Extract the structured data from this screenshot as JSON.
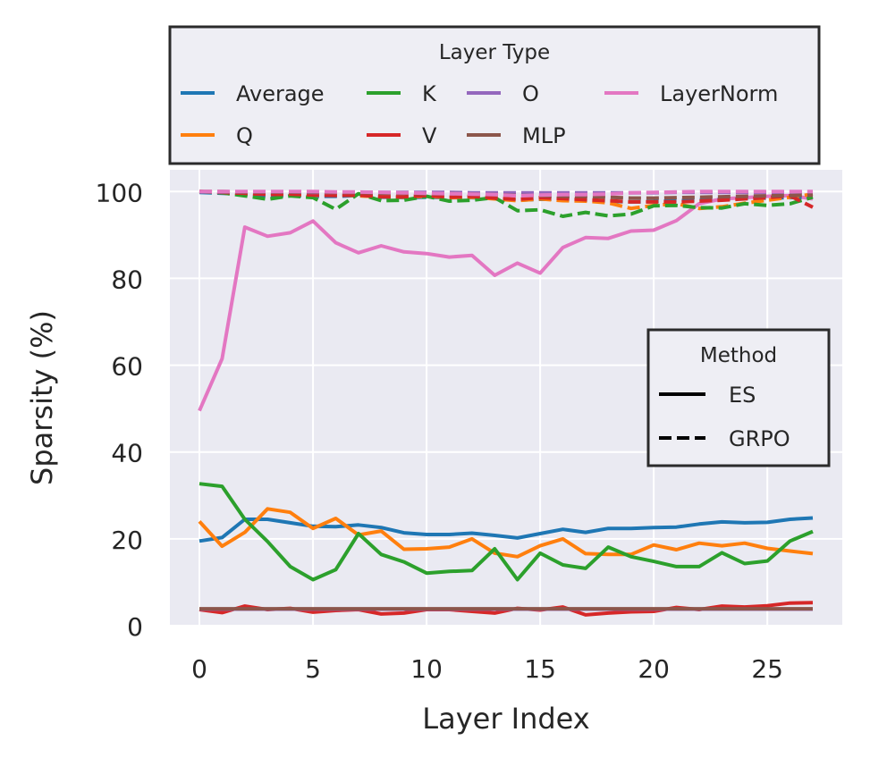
{
  "chart_data": {
    "type": "line",
    "title": "",
    "xlabel": "Layer Index",
    "ylabel": "Sparsity (%)",
    "xlim": [
      -1.3,
      28.3
    ],
    "ylim": [
      0,
      105
    ],
    "xticks": [
      0,
      5,
      10,
      15,
      20,
      25
    ],
    "yticks": [
      0,
      20,
      40,
      60,
      80,
      100
    ],
    "grid": true,
    "x": [
      0,
      1,
      2,
      3,
      4,
      5,
      6,
      7,
      8,
      9,
      10,
      11,
      12,
      13,
      14,
      15,
      16,
      17,
      18,
      19,
      20,
      21,
      22,
      23,
      24,
      25,
      26,
      27
    ],
    "layer_legend": {
      "title": "Layer Type",
      "placement": "top-outside",
      "entries": [
        {
          "name": "Average",
          "color": "#1f77b4"
        },
        {
          "name": "Q",
          "color": "#ff7f0e"
        },
        {
          "name": "K",
          "color": "#2ca02c"
        },
        {
          "name": "V",
          "color": "#d62728"
        },
        {
          "name": "O",
          "color": "#9467bd"
        },
        {
          "name": "MLP",
          "color": "#8c564b"
        },
        {
          "name": "LayerNorm",
          "color": "#e377c2"
        }
      ]
    },
    "method_legend": {
      "title": "Method",
      "placement": "center-right",
      "entries": [
        {
          "name": "ES",
          "style": "solid"
        },
        {
          "name": "GRPO",
          "style": "dashed"
        }
      ]
    },
    "series": [
      {
        "name": "Average",
        "method": "ES",
        "color": "#1f77b4",
        "values": [
          19.5,
          20.3,
          24.5,
          24.5,
          23.7,
          22.9,
          22.8,
          23.2,
          22.6,
          21.4,
          21.0,
          21.0,
          21.3,
          20.8,
          20.2,
          21.2,
          22.2,
          21.5,
          22.4,
          22.4,
          22.6,
          22.7,
          23.4,
          23.9,
          23.7,
          23.8,
          24.5,
          24.8
        ]
      },
      {
        "name": "Q",
        "method": "ES",
        "color": "#ff7f0e",
        "values": [
          24.0,
          18.3,
          21.5,
          26.9,
          26.1,
          22.4,
          24.7,
          20.9,
          21.8,
          17.6,
          17.7,
          18.1,
          20.0,
          16.7,
          15.9,
          18.4,
          20.0,
          16.6,
          16.4,
          16.4,
          18.6,
          17.5,
          19.0,
          18.4,
          19.0,
          17.8,
          17.2,
          16.6
        ]
      },
      {
        "name": "K",
        "method": "ES",
        "color": "#2ca02c",
        "values": [
          32.7,
          32.1,
          24.5,
          19.4,
          13.6,
          10.6,
          12.9,
          21.2,
          16.4,
          14.7,
          12.1,
          12.5,
          12.7,
          17.7,
          10.6,
          16.7,
          14.0,
          13.2,
          18.1,
          15.9,
          14.8,
          13.6,
          13.6,
          16.8,
          14.3,
          14.9,
          19.5,
          21.7
        ]
      },
      {
        "name": "V",
        "method": "ES",
        "color": "#d62728",
        "values": [
          3.7,
          3.0,
          4.5,
          3.7,
          4.0,
          3.1,
          3.5,
          3.7,
          2.7,
          2.9,
          3.7,
          3.7,
          3.3,
          2.9,
          4.0,
          3.6,
          4.3,
          2.5,
          2.9,
          3.2,
          3.3,
          4.2,
          3.7,
          4.5,
          4.3,
          4.6,
          5.2,
          5.3
        ]
      },
      {
        "name": "O",
        "method": "ES",
        "color": "#9467bd",
        "values": [
          3.8,
          3.8,
          3.8,
          3.8,
          3.8,
          3.8,
          3.8,
          3.8,
          3.8,
          3.8,
          3.8,
          3.8,
          3.8,
          3.8,
          3.8,
          3.8,
          3.8,
          3.8,
          3.8,
          3.8,
          3.8,
          3.8,
          3.8,
          3.8,
          3.8,
          3.8,
          3.8,
          3.8
        ]
      },
      {
        "name": "MLP",
        "method": "ES",
        "color": "#8c564b",
        "values": [
          3.9,
          3.9,
          3.9,
          3.9,
          3.9,
          3.9,
          3.9,
          3.9,
          3.9,
          3.9,
          3.9,
          3.9,
          3.9,
          3.9,
          3.9,
          3.9,
          3.9,
          3.9,
          3.9,
          3.9,
          3.9,
          3.9,
          3.9,
          3.9,
          3.9,
          3.9,
          3.9,
          3.9
        ]
      },
      {
        "name": "LayerNorm",
        "method": "ES",
        "color": "#e377c2",
        "values": [
          49.5,
          61.5,
          91.8,
          89.7,
          90.5,
          93.2,
          88.2,
          85.9,
          87.5,
          86.1,
          85.7,
          84.9,
          85.3,
          80.7,
          83.5,
          81.2,
          87.1,
          89.4,
          89.2,
          90.9,
          91.1,
          93.3,
          97.2,
          98.3,
          98.6,
          98.9,
          99.1,
          98.3
        ]
      },
      {
        "name": "Average",
        "method": "GRPO",
        "color": "#1f77b4",
        "values": [
          99.8,
          99.6,
          99.4,
          99.0,
          99.1,
          98.9,
          98.9,
          99.1,
          98.7,
          98.6,
          98.7,
          98.6,
          98.6,
          98.4,
          98.0,
          98.2,
          98.2,
          98.0,
          97.8,
          97.6,
          97.7,
          97.9,
          98.1,
          98.2,
          98.4,
          98.5,
          98.6,
          98.7
        ]
      },
      {
        "name": "Q",
        "method": "GRPO",
        "color": "#ff7f0e",
        "values": [
          100.0,
          99.8,
          99.6,
          99.4,
          99.3,
          99.1,
          99.3,
          99.0,
          98.8,
          98.7,
          98.9,
          98.6,
          98.7,
          98.3,
          97.9,
          98.3,
          97.9,
          97.8,
          97.4,
          96.1,
          96.8,
          97.2,
          96.1,
          96.5,
          97.3,
          98.0,
          98.7,
          99.4
        ]
      },
      {
        "name": "K",
        "method": "GRPO",
        "color": "#2ca02c",
        "values": [
          100.0,
          99.7,
          99.0,
          98.2,
          99.0,
          98.6,
          95.9,
          99.5,
          97.9,
          98.0,
          98.9,
          97.8,
          98.0,
          98.6,
          95.6,
          95.8,
          94.3,
          95.2,
          94.4,
          94.8,
          96.7,
          96.8,
          96.3,
          96.2,
          97.2,
          96.8,
          97.2,
          98.7
        ]
      },
      {
        "name": "V",
        "method": "GRPO",
        "color": "#d62728",
        "values": [
          100.0,
          99.8,
          99.6,
          99.3,
          99.4,
          99.2,
          99.1,
          99.2,
          98.8,
          98.8,
          99.1,
          98.7,
          98.9,
          98.5,
          98.2,
          98.6,
          98.4,
          98.1,
          97.9,
          97.6,
          97.6,
          97.6,
          97.8,
          98.0,
          98.3,
          98.6,
          99.0,
          96.4
        ]
      },
      {
        "name": "O",
        "method": "GRPO",
        "color": "#9467bd",
        "values": [
          99.9,
          99.9,
          99.9,
          99.9,
          99.9,
          99.8,
          99.8,
          99.8,
          99.8,
          99.8,
          99.8,
          99.8,
          99.7,
          99.7,
          99.7,
          99.7,
          99.7,
          99.7,
          99.7,
          99.7,
          99.7,
          99.8,
          99.8,
          99.8,
          99.8,
          99.8,
          99.9,
          99.9
        ]
      },
      {
        "name": "MLP",
        "method": "GRPO",
        "color": "#8c564b",
        "values": [
          100.0,
          100.0,
          99.9,
          99.9,
          99.9,
          99.9,
          99.8,
          99.8,
          99.6,
          99.6,
          99.5,
          99.5,
          99.4,
          99.3,
          99.1,
          99.1,
          98.9,
          98.9,
          98.7,
          98.5,
          98.5,
          98.6,
          98.7,
          98.8,
          98.9,
          99.0,
          99.1,
          99.2
        ]
      },
      {
        "name": "LayerNorm",
        "method": "GRPO",
        "color": "#e377c2",
        "values": [
          100.0,
          100.0,
          100.0,
          100.0,
          100.0,
          100.0,
          99.9,
          99.9,
          99.8,
          99.7,
          99.6,
          99.5,
          99.4,
          99.3,
          99.0,
          99.2,
          99.3,
          99.3,
          99.4,
          99.7,
          99.8,
          99.9,
          100.0,
          100.0,
          100.0,
          100.0,
          100.0,
          100.0
        ]
      }
    ]
  }
}
